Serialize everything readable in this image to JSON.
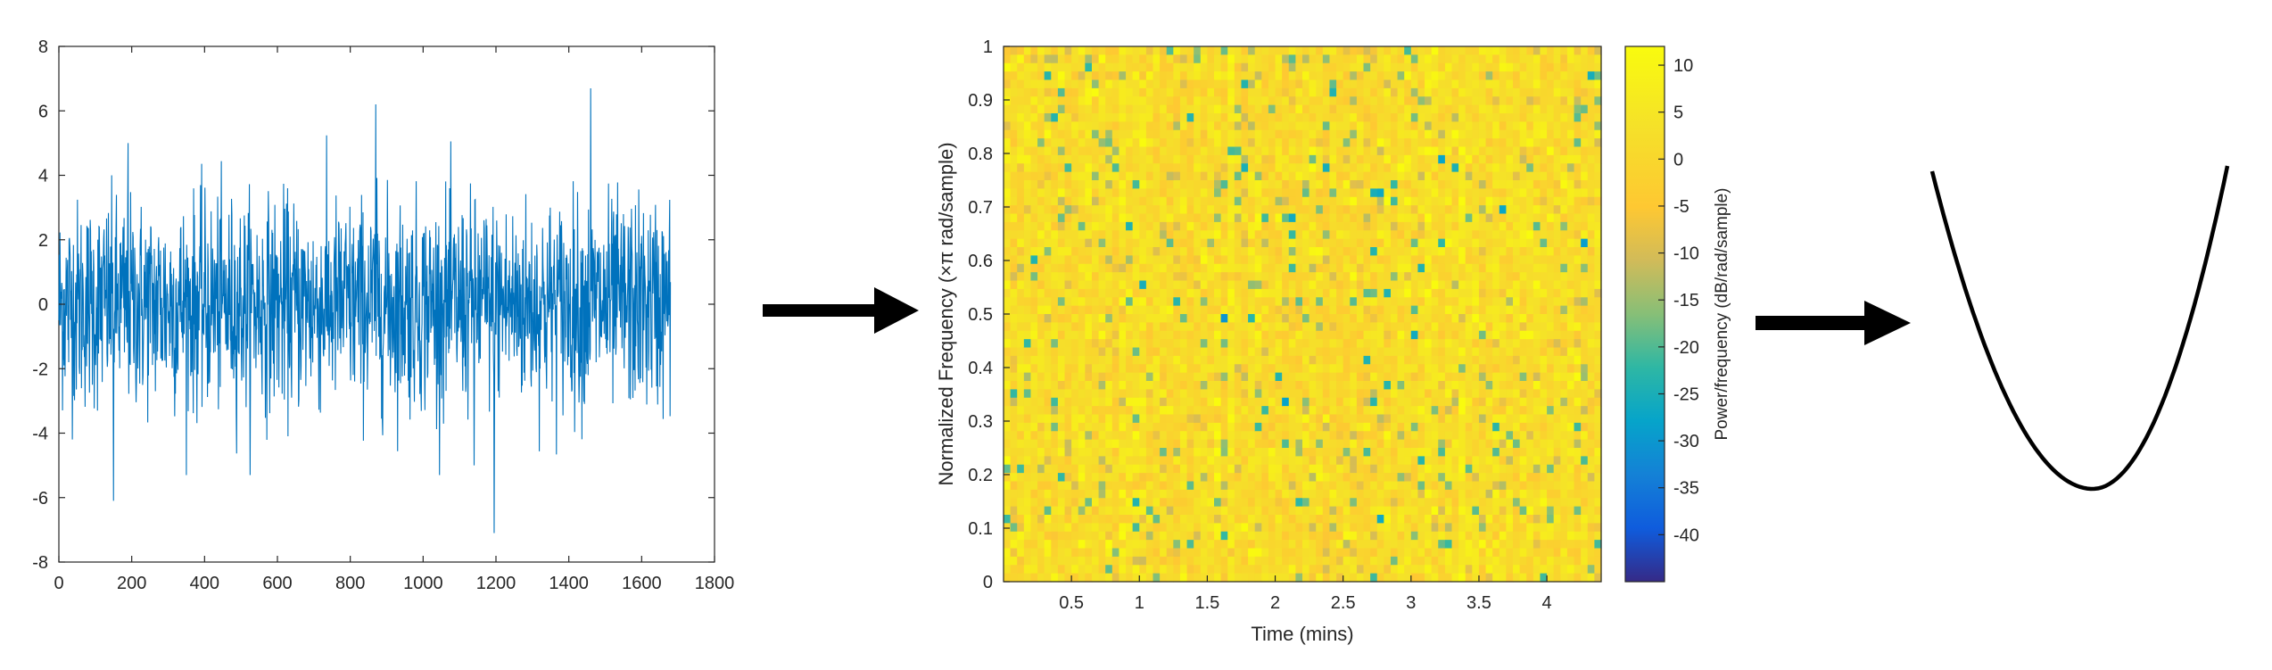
{
  "chart_data": [
    {
      "type": "line",
      "title": "",
      "xlabel": "",
      "ylabel": "",
      "xlim": [
        0,
        1800
      ],
      "ylim": [
        -8,
        8
      ],
      "xticks": [
        "0",
        "200",
        "400",
        "600",
        "800",
        "1000",
        "1200",
        "1400",
        "1600",
        "1800"
      ],
      "yticks": [
        "8",
        "6",
        "4",
        "2",
        "0",
        "-2",
        "-4",
        "-6",
        "-8"
      ],
      "series": [
        {
          "color": "#0072BD",
          "n_points": 1680,
          "approx_std": 1.6,
          "notable_peaks": [
            {
              "x": 870,
              "y": 6.2
            },
            {
              "x": 1460,
              "y": 6.7
            },
            {
              "x": 190,
              "y": 5.0
            },
            {
              "x": 1195,
              "y": -7.1
            },
            {
              "x": 150,
              "y": -6.1
            },
            {
              "x": 1140,
              "y": -5.0
            }
          ]
        }
      ]
    },
    {
      "type": "heatmap",
      "title": "",
      "xlabel": "Time (mins)",
      "ylabel": "Normalized Frequency  (×π rad/sample)",
      "xlim": [
        0,
        4.4
      ],
      "ylim": [
        0,
        1
      ],
      "xticks": [
        "0.5",
        "1",
        "1.5",
        "2",
        "2.5",
        "3",
        "3.5",
        "4"
      ],
      "yticks": [
        "1",
        "0.9",
        "0.8",
        "0.7",
        "0.6",
        "0.5",
        "0.4",
        "0.3",
        "0.2",
        "0.1",
        "0"
      ],
      "colormap": "parula",
      "colorbar": {
        "label": "Power/frequency (dB/rad/sample)",
        "range": [
          -45,
          12
        ],
        "ticks": [
          "10",
          "5",
          "0",
          "-5",
          "-10",
          "-15",
          "-20",
          "-25",
          "-30",
          "-35",
          "-40"
        ]
      },
      "grid_cols": 88,
      "grid_rows": 64,
      "typical_value_db": 2
    },
    {
      "type": "line",
      "title": "",
      "description_shape": "parabola",
      "color": "#000000"
    }
  ],
  "arrows": [
    {
      "color": "#000000"
    },
    {
      "color": "#000000"
    }
  ]
}
